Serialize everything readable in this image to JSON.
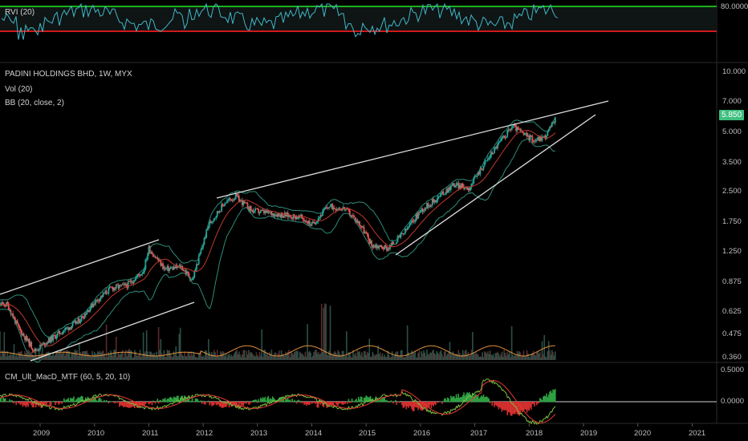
{
  "colors": {
    "background": "#000000",
    "up": "#26a69a",
    "down": "#ef5350",
    "rvi_line": "#3fb7c7",
    "rvi_upper": "#1db11d",
    "rvi_lower": "#d11a1a",
    "trendline": "#e0e0e0",
    "bb_band": "#2e8b7a",
    "bb_basis": "#c0392b",
    "volume_ma": "#e0913a",
    "macd_line": "#7fbf3f",
    "macd_signal": "#e53935",
    "price_tag": "#3fbf7f"
  },
  "rvi_panel": {
    "label": "RVI (20)",
    "level_label": "80.0000"
  },
  "price_panel": {
    "title": "PADINI HOLDINGS BHD, 1W, MYX",
    "studies": [
      "Vol (20)",
      "BB (20, close, 2)"
    ],
    "last_price": "5.850",
    "y_ticks": [
      "10.000",
      "7.000",
      "5.000",
      "3.500",
      "2.500",
      "1.750",
      "1.250",
      "0.875",
      "0.625",
      "0.475",
      "0.360"
    ]
  },
  "macd_panel": {
    "label": "CM_Ult_MacD_MTF (60, 5, 20, 10)",
    "y_ticks": [
      "0.5000",
      "0.0000"
    ]
  },
  "x_axis": {
    "ticks": [
      "2009",
      "2010",
      "2011",
      "2012",
      "2013",
      "2014",
      "2015",
      "2016",
      "2017",
      "2018",
      "2019",
      "2020",
      "2021"
    ]
  },
  "chart_data": {
    "type": "candlestick",
    "title": "PADINI HOLDINGS BHD, 1W, MYX",
    "scale": "log",
    "ylim": [
      0.36,
      10.0
    ],
    "x": [
      "2008.4",
      "2008.6",
      "2008.9",
      "2009.1",
      "2009.4",
      "2009.7",
      "2010.0",
      "2010.3",
      "2010.6",
      "2010.9",
      "2011.0",
      "2011.3",
      "2011.6",
      "2011.8",
      "2012.1",
      "2012.4",
      "2012.6",
      "2012.9",
      "2013.2",
      "2013.5",
      "2013.8",
      "2014.0",
      "2014.3",
      "2014.6",
      "2014.9",
      "2015.1",
      "2015.4",
      "2015.7",
      "2016.0",
      "2016.3",
      "2016.6",
      "2016.9",
      "2017.1",
      "2017.4",
      "2017.7",
      "2017.9",
      "2018.1",
      "2018.3",
      "2018.5"
    ],
    "series": [
      {
        "values": [
          0.68,
          0.52,
          0.4,
          0.44,
          0.5,
          0.56,
          0.7,
          0.82,
          0.85,
          1.0,
          1.3,
          1.02,
          1.05,
          0.9,
          1.7,
          2.2,
          2.35,
          2.0,
          1.95,
          1.9,
          1.85,
          1.7,
          2.1,
          2.05,
          1.7,
          1.35,
          1.3,
          1.55,
          2.0,
          2.3,
          2.7,
          2.6,
          3.2,
          4.2,
          5.3,
          4.8,
          4.5,
          4.7,
          5.85
        ]
      }
    ],
    "volume": {
      "label": "Vol (20)"
    },
    "indicators": [
      "RVI (20)",
      "Vol (20)",
      "BB (20, close, 2)",
      "CM_Ult_MacD_MTF (60, 5, 20, 10)"
    ],
    "macd_ylim": [
      -0.15,
      0.5
    ]
  }
}
